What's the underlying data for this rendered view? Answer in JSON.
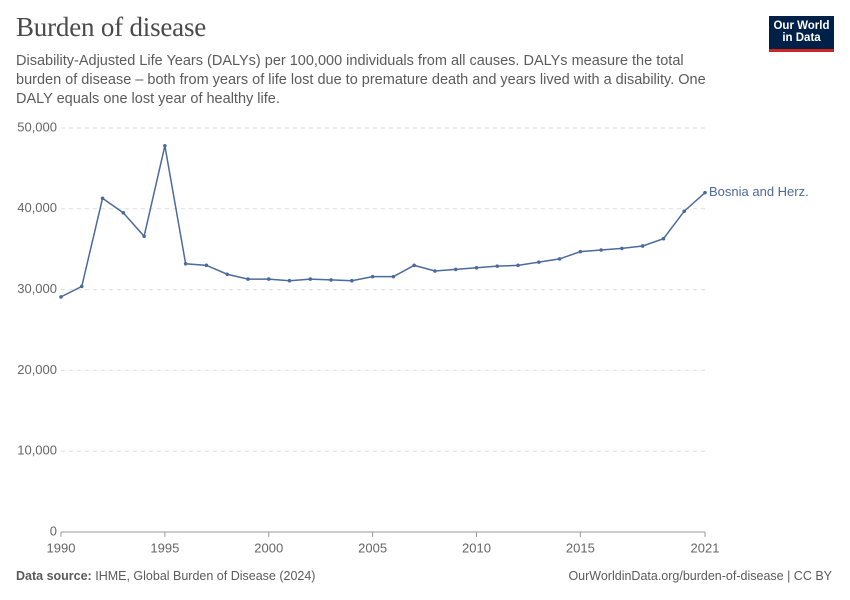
{
  "chart_data": {
    "type": "line",
    "title": "Burden of disease",
    "subtitle": "Disability-Adjusted Life Years (DALYs) per 100,000 individuals from all causes. DALYs measure the total burden of disease – both from years of life lost due to premature death and years lived with a disability. One DALY equals one lost year of healthy life.",
    "x": [
      1990,
      1991,
      1992,
      1993,
      1994,
      1995,
      1996,
      1997,
      1998,
      1999,
      2000,
      2001,
      2002,
      2003,
      2004,
      2005,
      2006,
      2007,
      2008,
      2009,
      2010,
      2011,
      2012,
      2013,
      2014,
      2015,
      2016,
      2017,
      2018,
      2019,
      2020,
      2021
    ],
    "series": [
      {
        "name": "Bosnia and Herz.",
        "color": "#4c6a9c",
        "values": [
          29100,
          30400,
          41300,
          39500,
          36600,
          47800,
          33200,
          33000,
          31900,
          31300,
          31300,
          31100,
          31300,
          31200,
          31100,
          31600,
          31600,
          33000,
          32300,
          32500,
          32700,
          32900,
          33000,
          33400,
          33800,
          34700,
          34900,
          35100,
          35400,
          36300,
          39700,
          42000
        ]
      }
    ],
    "xlim": [
      1990,
      2021
    ],
    "xticks": [
      1990,
      1995,
      2000,
      2005,
      2010,
      2015,
      2021
    ],
    "ylim": [
      0,
      50000
    ],
    "yticks": [
      0,
      {
        "value": 10000,
        "label": "10,000"
      },
      {
        "value": 20000,
        "label": "20,000"
      },
      {
        "value": 30000,
        "label": "30,000"
      },
      {
        "value": 40000,
        "label": "40,000"
      },
      {
        "value": 50000,
        "label": "50,000"
      }
    ],
    "grid": true
  },
  "logo": [
    "Our World",
    "in Data"
  ],
  "footer": {
    "source_label": "Data source:",
    "source": "IHME, Global Burden of Disease (2024)",
    "url": "OurWorldinData.org/burden-of-disease | CC BY"
  }
}
